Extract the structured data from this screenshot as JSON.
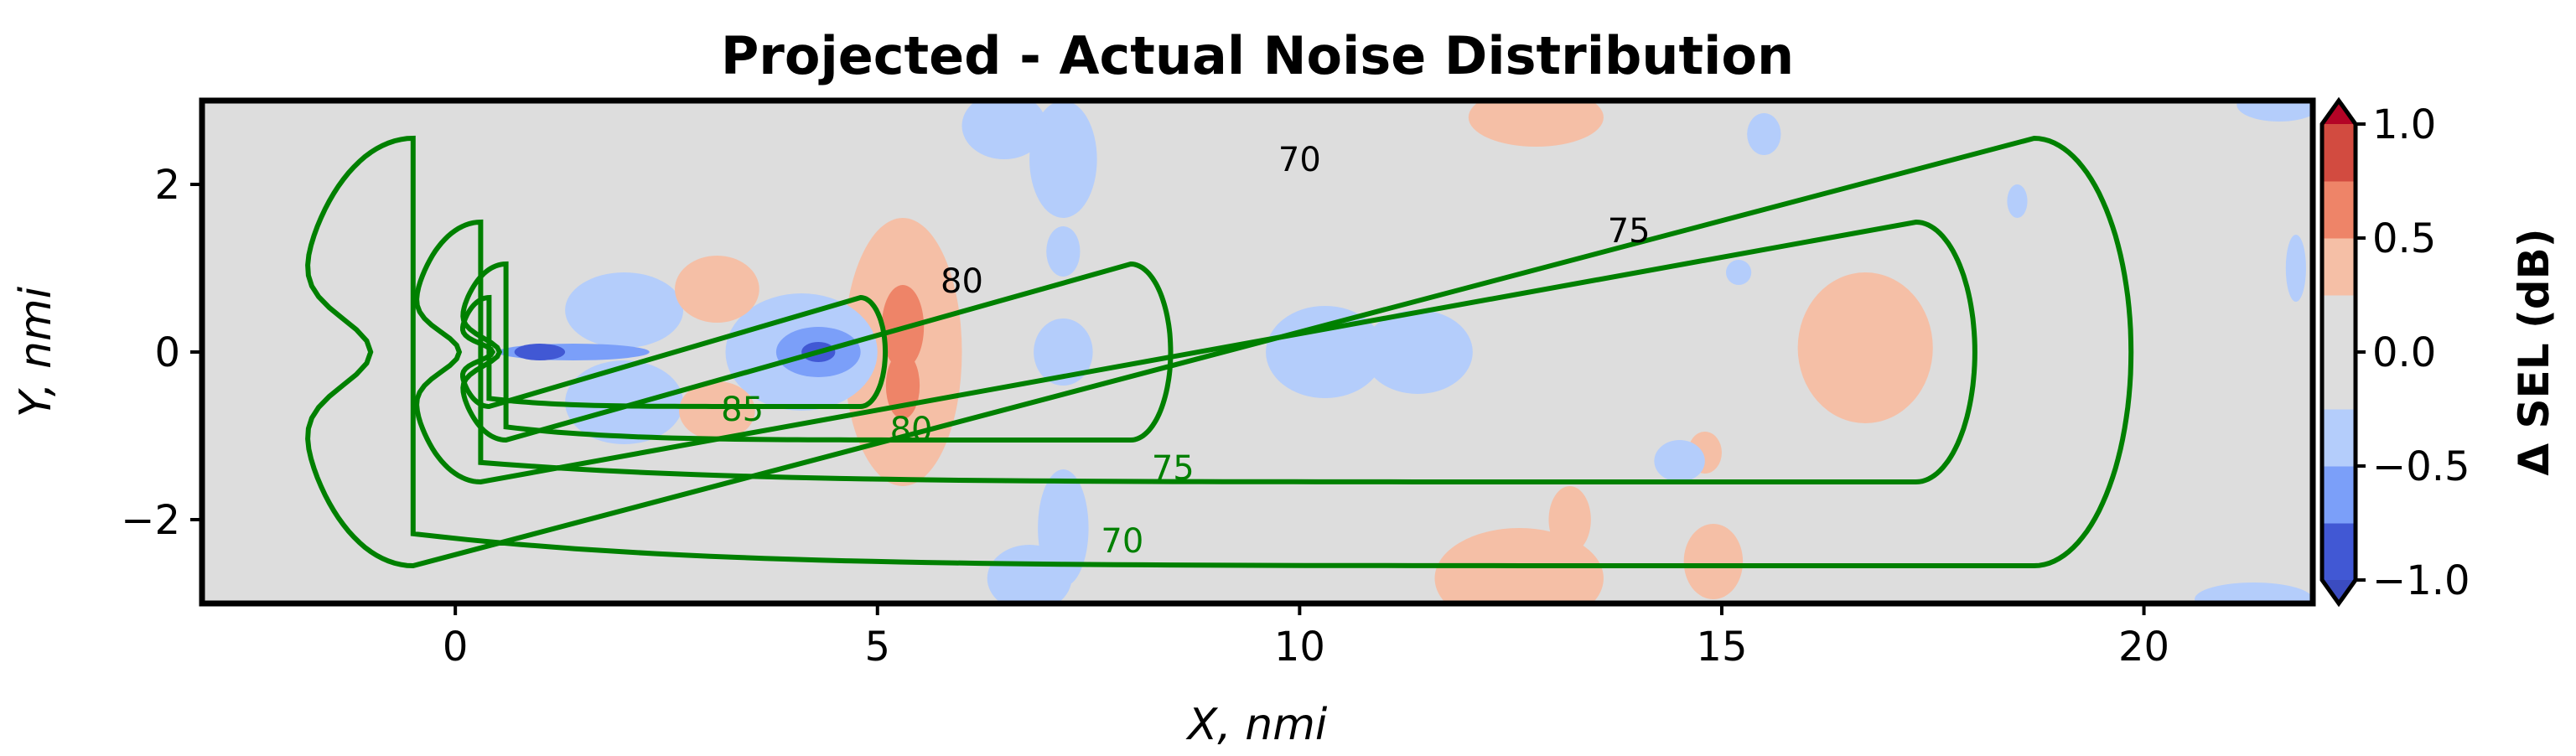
{
  "chart_data": {
    "type": "contour",
    "title": "Projected - Actual Noise Distribution",
    "xlabel": "X, nmi",
    "ylabel": "Y, nmi",
    "xlim": [
      -3,
      22
    ],
    "ylim": [
      -3,
      3
    ],
    "xticks": [
      0,
      5,
      10,
      15,
      20
    ],
    "yticks": [
      -2,
      0,
      2
    ],
    "xtick_labels": [
      "0",
      "5",
      "10",
      "15",
      "20"
    ],
    "ytick_labels": [
      "−2",
      "0",
      "2"
    ],
    "colorbar": {
      "label": "Δ SEL (dB)",
      "range": [
        -1.0,
        1.0
      ],
      "ticks": [
        -1.0,
        -0.5,
        0.0,
        0.5,
        1.0
      ],
      "tick_labels": [
        "−1.0",
        "−0.5",
        "0.0",
        "0.5",
        "1.0"
      ],
      "levels": [
        -1.0,
        -0.75,
        -0.5,
        -0.25,
        0.0,
        0.25,
        0.5,
        0.75,
        1.0
      ],
      "colors": [
        "#4158d4",
        "#7b9ff9",
        "#b4cdfb",
        "#dddddd",
        "#f5bfa6",
        "#ee8468",
        "#d24b40"
      ],
      "extend": "both",
      "under_color": "#3b4cc0",
      "over_color": "#b40426"
    },
    "contour_levels": [
      70,
      75,
      80,
      85
    ],
    "contour_labels": [
      {
        "text": "70",
        "series": "actual",
        "x": 10.0,
        "y": 2.3
      },
      {
        "text": "75",
        "series": "actual",
        "x": 13.9,
        "y": 1.45
      },
      {
        "text": "80",
        "series": "actual",
        "x": 6.0,
        "y": 0.85
      },
      {
        "text": "70",
        "series": "projected",
        "x": 7.9,
        "y": -2.25
      },
      {
        "text": "75",
        "series": "projected",
        "x": 8.5,
        "y": -1.38
      },
      {
        "text": "80",
        "series": "projected",
        "x": 5.4,
        "y": -0.92
      },
      {
        "text": "85",
        "series": "projected",
        "x": 3.4,
        "y": -0.68
      }
    ],
    "series": [
      {
        "style": "solid",
        "color": "#008000"
      },
      {
        "style": "dashed",
        "color": "#000000"
      }
    ],
    "diff_regions": [
      {
        "x": 7.2,
        "y": 0.0,
        "rx": 0.35,
        "ry": 0.4,
        "level": -0.3
      },
      {
        "x": 10.3,
        "y": 0.0,
        "rx": 0.7,
        "ry": 0.55,
        "level": -0.3
      },
      {
        "x": 11.4,
        "y": 0.0,
        "rx": 0.65,
        "ry": 0.5,
        "level": -0.3
      },
      {
        "x": 16.7,
        "y": 0.05,
        "rx": 0.8,
        "ry": 0.9,
        "level": 0.3
      },
      {
        "x": 5.3,
        "y": 0.0,
        "rx": 0.7,
        "ry": 1.6,
        "level": 0.3
      },
      {
        "x": 5.3,
        "y": 0.3,
        "rx": 0.25,
        "ry": 0.5,
        "level": 0.6
      },
      {
        "x": 5.3,
        "y": -0.4,
        "rx": 0.2,
        "ry": 0.4,
        "level": 0.6
      },
      {
        "x": 4.1,
        "y": 0.0,
        "rx": 0.9,
        "ry": 0.7,
        "level": -0.3
      },
      {
        "x": 4.3,
        "y": 0.0,
        "rx": 0.5,
        "ry": 0.3,
        "level": -0.6
      },
      {
        "x": 4.3,
        "y": 0.0,
        "rx": 0.2,
        "ry": 0.12,
        "level": -0.9
      },
      {
        "x": 2.0,
        "y": 0.5,
        "rx": 0.7,
        "ry": 0.45,
        "level": -0.3
      },
      {
        "x": 2.0,
        "y": -0.6,
        "rx": 0.7,
        "ry": 0.5,
        "level": -0.3
      },
      {
        "x": 3.1,
        "y": 0.75,
        "rx": 0.5,
        "ry": 0.4,
        "level": 0.3
      },
      {
        "x": 3.1,
        "y": -0.7,
        "rx": 0.45,
        "ry": 0.35,
        "level": 0.3
      },
      {
        "x": 1.4,
        "y": 0.0,
        "rx": 0.9,
        "ry": 0.1,
        "level": -0.6
      },
      {
        "x": 1.0,
        "y": 0.0,
        "rx": 0.12,
        "ry": 0.08,
        "level": 0.9
      },
      {
        "x": 1.0,
        "y": 0.0,
        "rx": 0.3,
        "ry": 0.1,
        "level": -0.9
      },
      {
        "x": 6.5,
        "y": 2.7,
        "rx": 0.5,
        "ry": 0.4,
        "level": -0.3
      },
      {
        "x": 7.2,
        "y": 2.3,
        "rx": 0.4,
        "ry": 0.7,
        "level": -0.3
      },
      {
        "x": 7.2,
        "y": 1.2,
        "rx": 0.2,
        "ry": 0.3,
        "level": -0.3
      },
      {
        "x": 6.8,
        "y": -2.7,
        "rx": 0.5,
        "ry": 0.4,
        "level": -0.3
      },
      {
        "x": 7.2,
        "y": -2.1,
        "rx": 0.3,
        "ry": 0.7,
        "level": -0.3
      },
      {
        "x": 12.8,
        "y": 2.8,
        "rx": 0.8,
        "ry": 0.35,
        "level": 0.3
      },
      {
        "x": 12.6,
        "y": -2.7,
        "rx": 1.0,
        "ry": 0.6,
        "level": 0.3
      },
      {
        "x": 13.2,
        "y": -2.0,
        "rx": 0.25,
        "ry": 0.4,
        "level": 0.3
      },
      {
        "x": 14.9,
        "y": -2.5,
        "rx": 0.35,
        "ry": 0.45,
        "level": 0.3
      },
      {
        "x": 14.8,
        "y": -1.2,
        "rx": 0.2,
        "ry": 0.25,
        "level": 0.3
      },
      {
        "x": 15.2,
        "y": 0.95,
        "rx": 0.15,
        "ry": 0.15,
        "level": -0.3
      },
      {
        "x": 15.5,
        "y": 2.6,
        "rx": 0.2,
        "ry": 0.25,
        "level": -0.3
      },
      {
        "x": 14.5,
        "y": -1.3,
        "rx": 0.3,
        "ry": 0.25,
        "level": -0.3
      },
      {
        "x": 21.6,
        "y": 2.95,
        "rx": 0.5,
        "ry": 0.2,
        "level": -0.3
      },
      {
        "x": 21.3,
        "y": -2.95,
        "rx": 0.7,
        "ry": 0.2,
        "level": -0.3
      },
      {
        "x": 18.5,
        "y": 1.8,
        "rx": 0.12,
        "ry": 0.2,
        "level": -0.3
      },
      {
        "x": 21.8,
        "y": 1.0,
        "rx": 0.12,
        "ry": 0.4,
        "level": -0.3
      }
    ]
  }
}
